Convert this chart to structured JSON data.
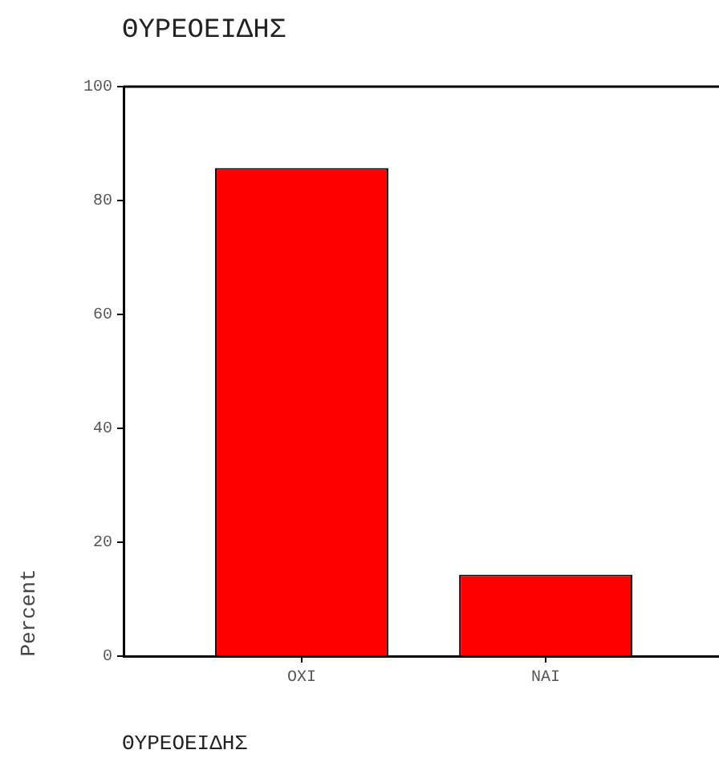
{
  "chart_data": {
    "type": "bar",
    "title": "ΘΥΡΕΟΕΙΔΗΣ",
    "xlabel": "ΘΥΡΕΟΕΙΔΗΣ",
    "ylabel": "Percent",
    "categories": [
      "OXI",
      "NAI"
    ],
    "values": [
      85.7,
      14.3
    ],
    "color": "#ff0000",
    "ylim": [
      0,
      100
    ],
    "yticks": [
      0,
      20,
      40,
      60,
      80,
      100
    ],
    "grid": false,
    "legend": false
  }
}
